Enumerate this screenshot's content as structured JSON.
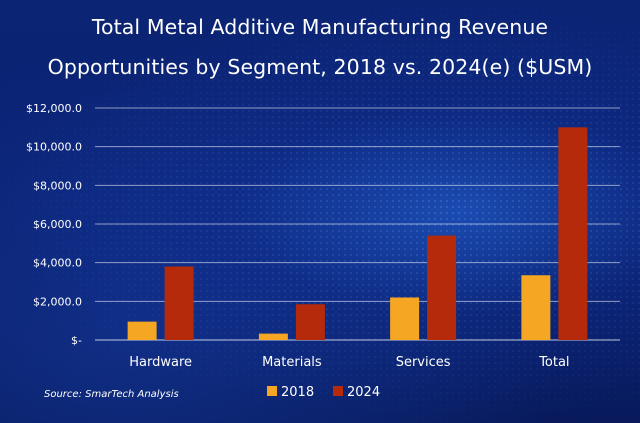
{
  "chart_data": {
    "type": "bar",
    "title_lines": [
      "Total Metal Additive Manufacturing  Revenue",
      "Opportunities by Segment, 2018 vs. 2024(e) ($USM)"
    ],
    "categories": [
      "Hardware",
      "Materials",
      "Services",
      "Total"
    ],
    "series": [
      {
        "name": "2018",
        "color": "#f5a623",
        "values": [
          950,
          330,
          2200,
          3350
        ]
      },
      {
        "name": "2024",
        "color": "#b52a0a",
        "values": [
          3800,
          1850,
          5400,
          11000
        ]
      }
    ],
    "y_ticks": [
      0,
      2000,
      4000,
      6000,
      8000,
      10000,
      12000
    ],
    "y_tick_labels": [
      "$-",
      "$2,000.0",
      "$4,000.0",
      "$6,000.0",
      "$8,000.0",
      "$10,000.0",
      "$12,000.0"
    ],
    "ylim": [
      0,
      12000
    ],
    "grid": true,
    "legend_position": "bottom"
  },
  "source": "Source: SmarTech Analysis"
}
